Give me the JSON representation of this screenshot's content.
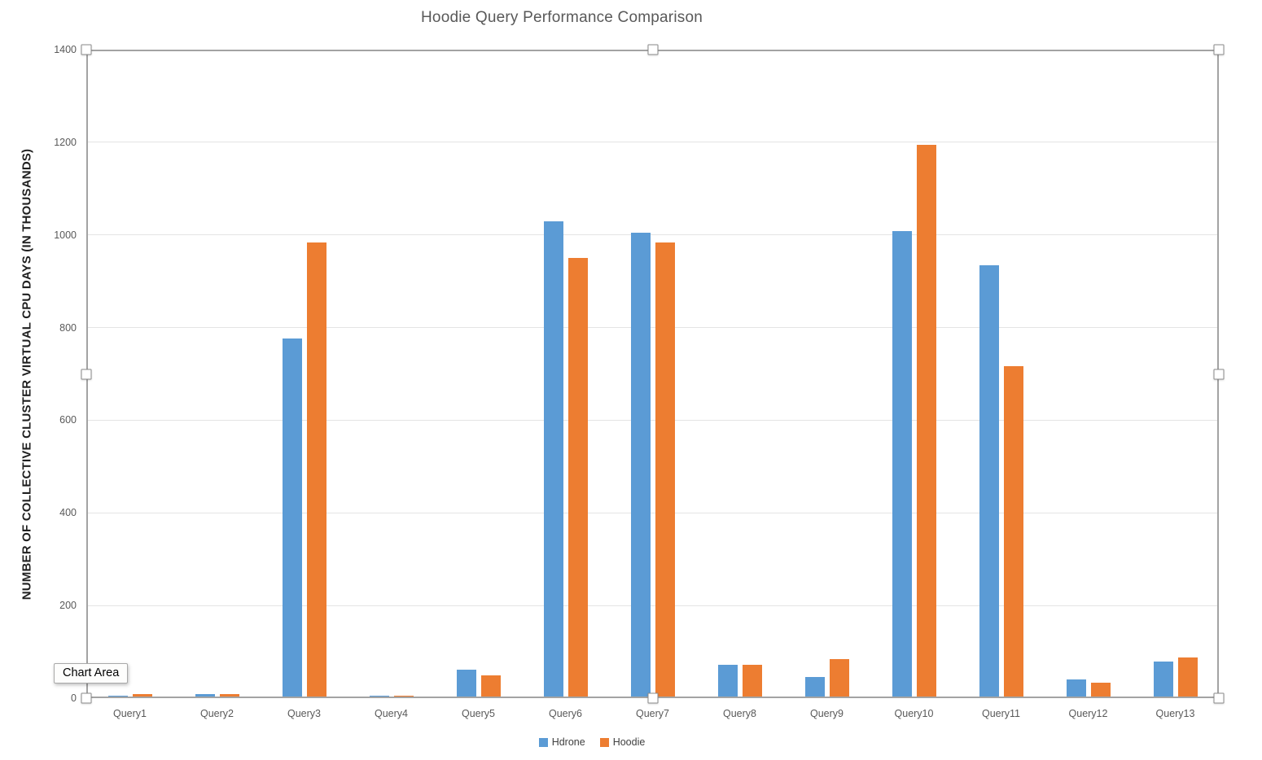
{
  "tooltip": {
    "text": "Chart Area"
  },
  "chart_data": {
    "type": "bar",
    "title": "Hoodie Query Performance Comparison",
    "ylabel": "NUMBER OF COLLECTIVE CLUSTER VIRTUAL CPU DAYS (IN THOUSANDS)",
    "xlabel": "",
    "categories": [
      "Query1",
      "Query2",
      "Query3",
      "Query4",
      "Query5",
      "Query6",
      "Query7",
      "Query8",
      "Query9",
      "Query10",
      "Query11",
      "Query12",
      "Query13"
    ],
    "series": [
      {
        "name": "Hdrone",
        "color": "#5b9bd5",
        "values": [
          6,
          9,
          776,
          5,
          62,
          1029,
          1004,
          72,
          46,
          1008,
          934,
          40,
          79
        ]
      },
      {
        "name": "Hoodie",
        "color": "#ed7d31",
        "values": [
          9,
          9,
          983,
          5,
          50,
          950,
          983,
          72,
          84,
          1194,
          716,
          33,
          88
        ]
      }
    ],
    "ylim": [
      0,
      1400
    ],
    "yticks": [
      0,
      200,
      400,
      600,
      800,
      1000,
      1200,
      1400
    ],
    "grid": true,
    "legend_position": "bottom",
    "colors": {
      "axis_line": "#a3a3a3",
      "gridline": "#e4e4e4",
      "title_text": "#595959",
      "tick_text": "#595959",
      "legend_text": "#404040",
      "axis_title_text": "#1f1f1f"
    }
  }
}
